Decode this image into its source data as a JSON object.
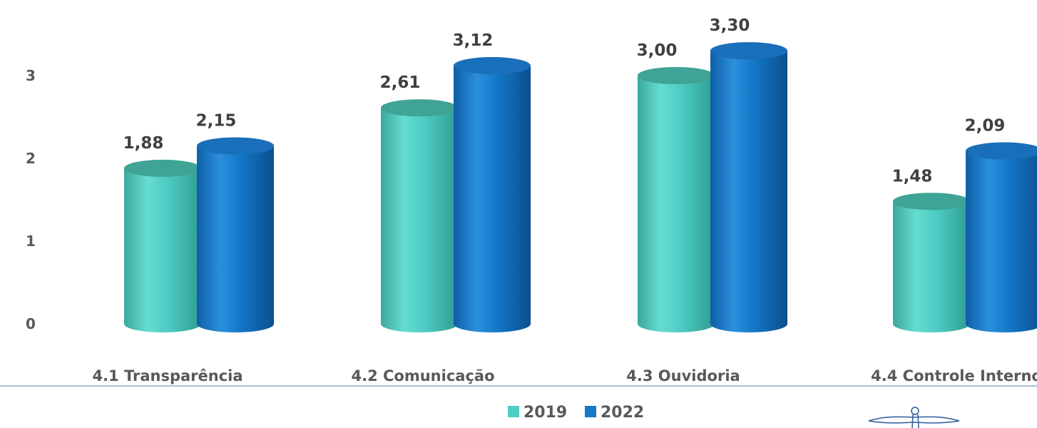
{
  "chart_data": {
    "type": "bar",
    "categories": [
      "4.1 Transparência",
      "4.2 Comunicação",
      "4.3 Ouvidoria",
      "4.4 Controle Interno"
    ],
    "series": [
      {
        "name": "2019",
        "values": [
          1.88,
          2.61,
          3.0,
          1.48
        ],
        "labels": [
          "1,88",
          "2,61",
          "3,00",
          "1,48"
        ],
        "color": "#4ECDC4"
      },
      {
        "name": "2022",
        "values": [
          2.15,
          3.12,
          3.3,
          2.09
        ],
        "labels": [
          "2,15",
          "3,12",
          "3,30",
          "2,09"
        ],
        "color": "#1479C9"
      }
    ],
    "yticks": [
      "0",
      "1",
      "2",
      "3",
      "4"
    ],
    "ylim": [
      0,
      4
    ],
    "grid": false,
    "legend": "bottom-center"
  },
  "logo": {
    "icon": "christ-the-redeemer-logo-icon"
  }
}
